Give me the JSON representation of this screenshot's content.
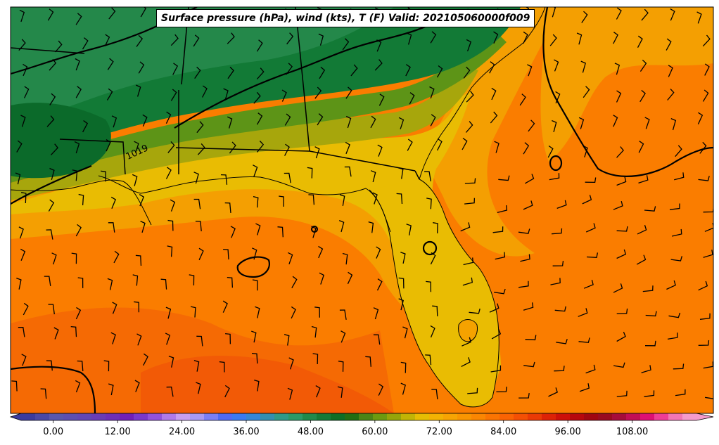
{
  "title": "Surface pressure (hPa), wind (kts), T (F) Valid: 202105060000f009",
  "isobar_label": "1019",
  "colorbar": {
    "range": [
      -6,
      120
    ],
    "step": 3,
    "tick_values": [
      0,
      12,
      24,
      36,
      48,
      60,
      72,
      84,
      96,
      108
    ],
    "tick_labels": [
      "0.00",
      "12.00",
      "24.00",
      "36.00",
      "48.00",
      "60.00",
      "72.00",
      "84.00",
      "96.00",
      "108.00"
    ],
    "colors": [
      "#3b3b9e",
      "#4a48a6",
      "#5a57ae",
      "#5d4fb1",
      "#6247b4",
      "#6a3cb6",
      "#6e2fb8",
      "#7120b8",
      "#7a38cc",
      "#9252dc",
      "#b07ae9",
      "#c89ef0",
      "#a79af4",
      "#7b7ff6",
      "#4f6af5",
      "#3b7af0",
      "#3586d6",
      "#338fb0",
      "#2f9a88",
      "#2a9a68",
      "#1f8a4b",
      "#147a37",
      "#0d6e25",
      "#226e12",
      "#4c8416",
      "#6c9a10",
      "#95a50a",
      "#c1b405",
      "#e6bd03",
      "#f3b203",
      "#f7a403",
      "#f99502",
      "#fb8602",
      "#fb7402",
      "#fa6303",
      "#f45004",
      "#ea3a05",
      "#dd2206",
      "#cd1009",
      "#b7070d",
      "#a10611",
      "#990b20",
      "#a60d3a",
      "#c20e55",
      "#dd1173",
      "#ee3d96",
      "#f276b5",
      "#f59bcb"
    ]
  },
  "map_colors": {
    "land_green_dark": "#127a36",
    "land_green_mid": "#2a8c48",
    "olive": "#5d9417",
    "olive_yellow": "#a7a60c",
    "gold": "#e9bc03",
    "amber": "#f3a504",
    "orange": "#fa8b02",
    "deep_orange": "#fb7000",
    "red_orange": "#f45b05"
  },
  "wind_barbs_visible": true,
  "isobars_visible": true
}
